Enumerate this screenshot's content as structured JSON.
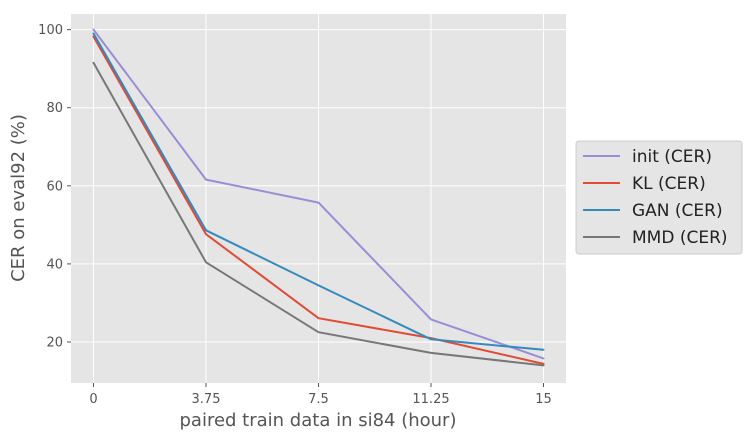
{
  "chart_data": {
    "type": "line",
    "xlabel": "paired train data in si84 (hour)",
    "ylabel": "CER on eval92 (%)",
    "x": [
      0,
      3.75,
      7.5,
      11.25,
      15
    ],
    "x_tick_labels": [
      "0",
      "3.75",
      "7.5",
      "11.25",
      "15"
    ],
    "y_ticks": [
      20,
      40,
      60,
      80,
      100
    ],
    "y_tick_labels": [
      "20",
      "40",
      "60",
      "80",
      "100"
    ],
    "xlim": [
      -0.75,
      15.75
    ],
    "ylim": [
      9.5,
      104
    ],
    "grid": true,
    "legend_position": "outside-right",
    "series": [
      {
        "name": "init (CER)",
        "color": "#988ED5",
        "values": [
          100,
          61.6,
          55.7,
          25.8,
          15.8
        ]
      },
      {
        "name": "KL (CER)",
        "color": "#E24A33",
        "values": [
          98.2,
          47.6,
          26.1,
          21.0,
          14.4
        ]
      },
      {
        "name": "GAN (CER)",
        "color": "#348ABD",
        "values": [
          99.0,
          48.6,
          34.5,
          20.7,
          18.0
        ]
      },
      {
        "name": "MMD (CER)",
        "color": "#777777",
        "values": [
          91.5,
          40.4,
          22.5,
          17.2,
          14.0
        ]
      }
    ]
  }
}
